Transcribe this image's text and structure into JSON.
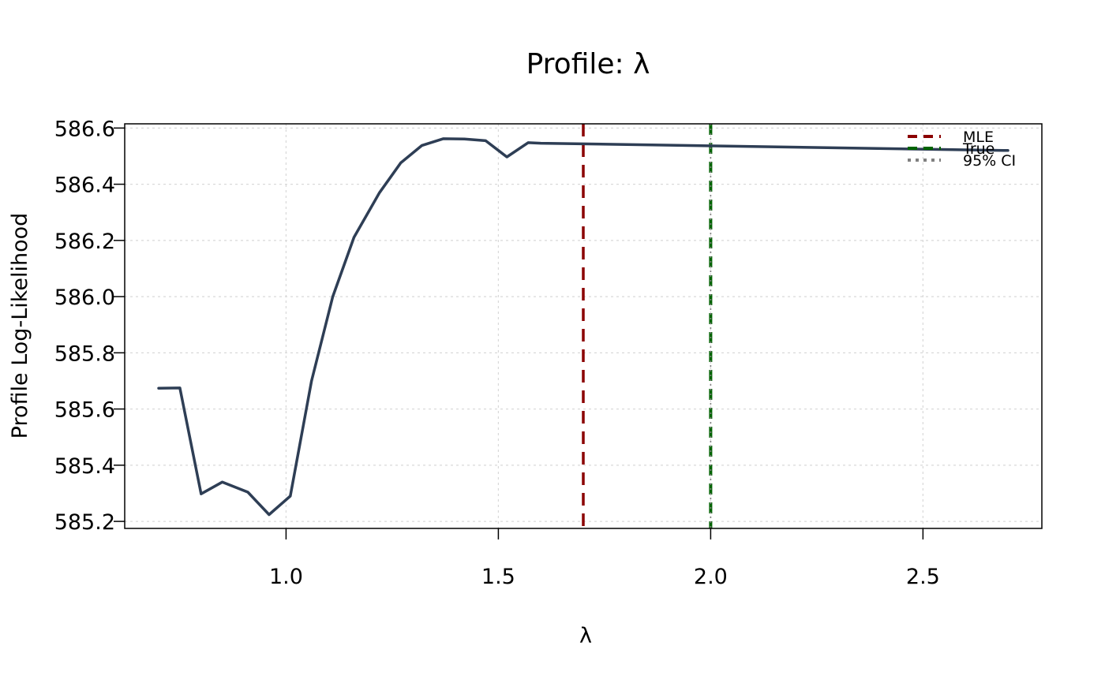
{
  "chart_data": {
    "type": "line",
    "title": "Profile: λ",
    "xlabel": "λ",
    "ylabel": "Profile Log-Likelihood",
    "xlim": [
      0.62,
      2.78
    ],
    "ylim": [
      585.175,
      586.615
    ],
    "xticks": [
      1.0,
      1.5,
      2.0,
      2.5
    ],
    "xtick_labels": [
      "1.0",
      "1.5",
      "2.0",
      "2.5"
    ],
    "yticks": [
      585.2,
      585.4,
      585.6,
      585.8,
      586.0,
      586.2,
      586.4,
      586.6
    ],
    "ytick_labels": [
      "585.2",
      "585.4",
      "585.6",
      "585.8",
      "586.0",
      "586.2",
      "586.4",
      "586.6"
    ],
    "grid": true,
    "legend_position": "top-right",
    "series": [
      {
        "x": [
          0.7,
          0.75,
          0.8,
          0.85,
          0.91,
          0.96,
          1.01,
          1.06,
          1.11,
          1.16,
          1.22,
          1.27,
          1.32,
          1.37,
          1.42,
          1.47,
          1.52,
          1.57,
          1.6,
          2.7
        ],
        "values": [
          585.674,
          585.675,
          585.298,
          585.34,
          585.304,
          585.224,
          585.29,
          585.7,
          586.0,
          586.211,
          586.37,
          586.476,
          586.538,
          586.562,
          586.561,
          586.555,
          586.497,
          586.548,
          586.546,
          586.52
        ],
        "color": "#2e3e55"
      }
    ],
    "reference_lines": [
      {
        "name": "MLE",
        "x": 1.7,
        "color": "#8b0000",
        "style": "dashed"
      },
      {
        "name": "True",
        "x": 2.0,
        "color": "#006400",
        "style": "dashed"
      },
      {
        "name": "95% CI",
        "x": 2.0,
        "color": "#808080",
        "style": "dotted"
      }
    ]
  }
}
